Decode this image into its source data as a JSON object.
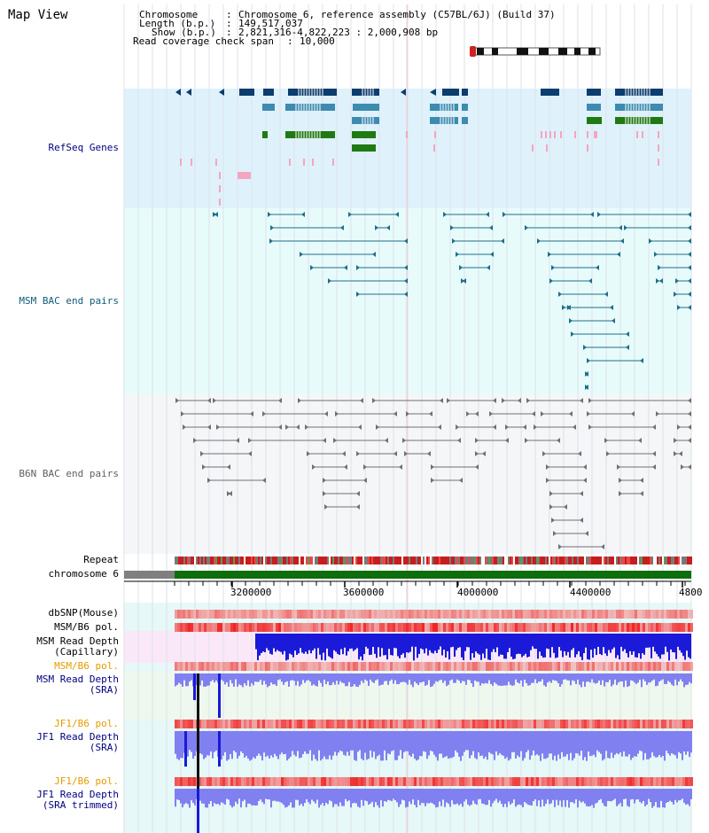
{
  "page": {
    "title": "Map View"
  },
  "info": {
    "chromosome_label": "Chromosome",
    "chromosome_value": "Chromosome 6, reference assembly (C57BL/6J) (Build 37)",
    "length_label": "Length (b.p.)",
    "length_value": "149,517,037",
    "show_label": "Show (b.p.)",
    "show_value": "2,821,316-4,822,223 : 2,000,908 bp",
    "coverage_label": "Read coverage check span",
    "coverage_value": "10,000"
  },
  "tracks": {
    "refseq": "RefSeq Genes",
    "msm_bac": "MSM BAC end pairs",
    "b6n_bac": "B6N BAC end pairs",
    "repeat": "Repeat",
    "chromosome": "chromosome 6",
    "dbsnp": "dbSNP(Mouse)",
    "msm_b6_pol_1": "MSM/B6 pol.",
    "msm_depth_cap_1": "MSM Read Depth",
    "msm_depth_cap_2": "(Capillary)",
    "msm_b6_pol_2": "MSM/B6 pol.",
    "msm_depth_sra_1": "MSM Read Depth",
    "msm_depth_sra_2": "(SRA)",
    "jf1_b6_pol_1": "JF1/B6 pol.",
    "jf1_depth_sra_1": "JF1 Read Depth",
    "jf1_depth_sra_2": "(SRA)",
    "jf1_b6_pol_2": "JF1/B6 pol.",
    "jf1_depth_trim_1": "JF1 Read Depth",
    "jf1_depth_trim_2": "(SRA trimmed)"
  },
  "axis": {
    "ticks": [
      "3200000",
      "3600000",
      "4000000",
      "4400000",
      "4800"
    ]
  },
  "colors": {
    "refseq_bg": "#dff1fb",
    "msm_bg": "#e8fbfb",
    "b6n_bg": "#f4f6f8",
    "gene_dark": "#0b3d6e",
    "gene_mid": "#3d8bb0",
    "gene_green": "#1f7a12",
    "snp_pink": "#f4a6c0",
    "bac_teal": "#1d6f8a",
    "bac_gray": "#707070",
    "chrom_green": "#0d6e0d",
    "depth_blue": "#1a1ad8",
    "depth_light": "#8080f0",
    "pol_red": "#e02020"
  }
}
